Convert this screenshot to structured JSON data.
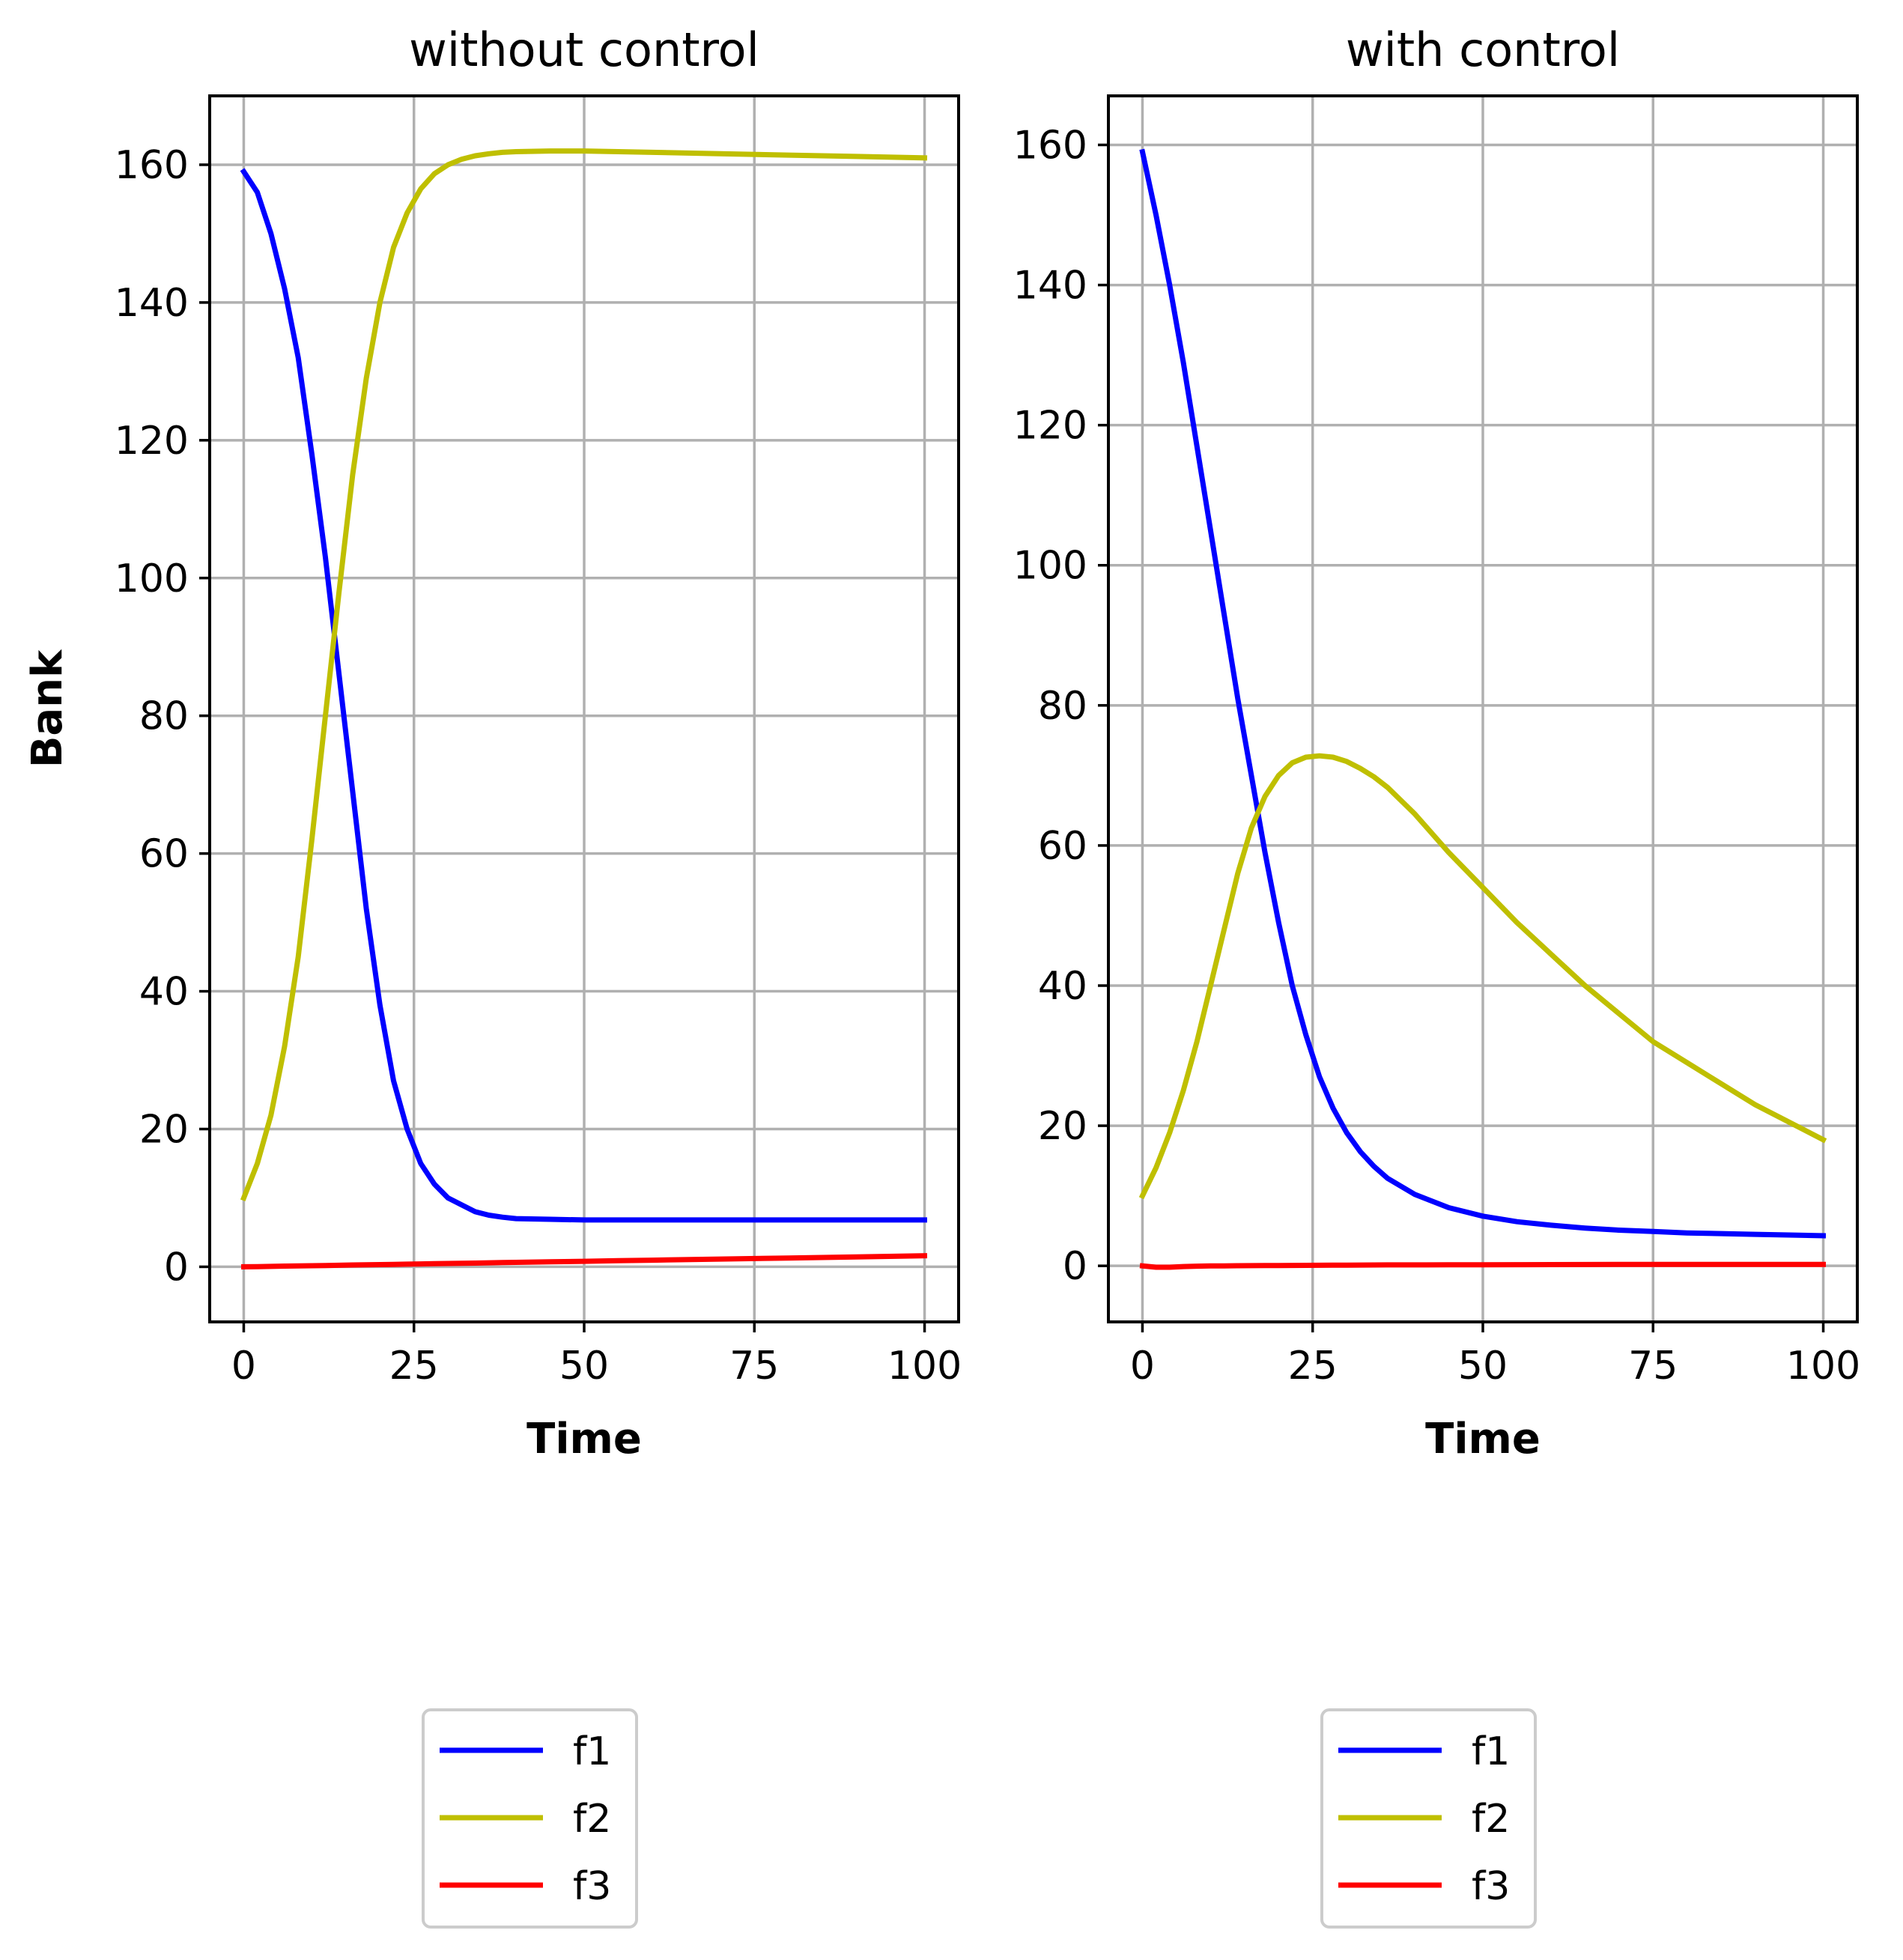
{
  "chart_data": [
    {
      "type": "line",
      "title": "without control",
      "xlabel": "Time",
      "ylabel": "Bank",
      "xlim": [
        -5,
        105
      ],
      "ylim": [
        -8,
        170
      ],
      "xticks": [
        0,
        25,
        50,
        75,
        100
      ],
      "yticks": [
        0,
        20,
        40,
        60,
        80,
        100,
        120,
        140,
        160
      ],
      "grid": true,
      "legend": "below",
      "x": [
        0,
        2,
        4,
        6,
        8,
        10,
        12,
        14,
        16,
        18,
        20,
        22,
        24,
        26,
        28,
        30,
        32,
        34,
        36,
        38,
        40,
        45,
        50,
        55,
        60,
        70,
        80,
        90,
        100
      ],
      "series": [
        {
          "name": "f1",
          "color": "#0000ff",
          "values": [
            159,
            156,
            150,
            142,
            132,
            118,
            103,
            86,
            69,
            52,
            38,
            27,
            20,
            15,
            12,
            10,
            9,
            8,
            7.5,
            7.2,
            7,
            6.9,
            6.8,
            6.8,
            6.8,
            6.8,
            6.8,
            6.8,
            6.8
          ]
        },
        {
          "name": "f2",
          "color": "#bfbf00",
          "values": [
            10,
            15,
            22,
            32,
            45,
            62,
            80,
            98,
            115,
            129,
            140,
            148,
            153,
            156.5,
            158.7,
            160,
            160.8,
            161.3,
            161.6,
            161.8,
            161.9,
            162,
            162,
            161.9,
            161.8,
            161.6,
            161.4,
            161.2,
            161
          ]
        },
        {
          "name": "f3",
          "color": "#ff0000",
          "values": [
            0,
            0.03,
            0.06,
            0.1,
            0.13,
            0.16,
            0.19,
            0.22,
            0.26,
            0.29,
            0.32,
            0.35,
            0.38,
            0.42,
            0.45,
            0.48,
            0.51,
            0.54,
            0.58,
            0.61,
            0.64,
            0.72,
            0.8,
            0.88,
            0.96,
            1.12,
            1.28,
            1.44,
            1.6
          ]
        }
      ]
    },
    {
      "type": "line",
      "title": "with control",
      "xlabel": "Time",
      "ylabel": "",
      "xlim": [
        -5,
        105
      ],
      "ylim": [
        -8,
        167
      ],
      "xticks": [
        0,
        25,
        50,
        75,
        100
      ],
      "yticks": [
        0,
        20,
        40,
        60,
        80,
        100,
        120,
        140,
        160
      ],
      "grid": true,
      "legend": "below",
      "x": [
        0,
        2,
        4,
        6,
        8,
        10,
        12,
        14,
        16,
        18,
        20,
        22,
        24,
        26,
        28,
        30,
        32,
        34,
        36,
        40,
        45,
        50,
        55,
        60,
        65,
        70,
        75,
        80,
        85,
        90,
        95,
        100
      ],
      "series": [
        {
          "name": "f1",
          "color": "#0000ff",
          "values": [
            159,
            150,
            140,
            129,
            117,
            105,
            93,
            81,
            70,
            59,
            49,
            40,
            33,
            27,
            22.5,
            19,
            16.3,
            14.2,
            12.5,
            10.2,
            8.3,
            7.1,
            6.3,
            5.8,
            5.4,
            5.1,
            4.9,
            4.7,
            4.6,
            4.5,
            4.4,
            4.3
          ]
        },
        {
          "name": "f2",
          "color": "#bfbf00",
          "values": [
            10,
            14,
            19,
            25,
            32,
            40,
            48,
            56,
            62.5,
            67,
            70,
            71.8,
            72.6,
            72.8,
            72.6,
            72,
            71,
            69.8,
            68.3,
            64.5,
            59,
            54,
            49,
            44.5,
            40,
            36,
            32,
            29,
            26,
            23,
            20.5,
            18
          ]
        },
        {
          "name": "f3",
          "color": "#ff0000",
          "values": [
            0,
            -0.2,
            -0.2,
            -0.1,
            -0.05,
            0,
            0,
            0.02,
            0.03,
            0.04,
            0.05,
            0.06,
            0.07,
            0.08,
            0.09,
            0.1,
            0.11,
            0.12,
            0.13,
            0.14,
            0.15,
            0.16,
            0.17,
            0.18,
            0.19,
            0.2,
            0.21,
            0.21,
            0.2,
            0.2,
            0.2,
            0.2
          ]
        }
      ]
    }
  ]
}
